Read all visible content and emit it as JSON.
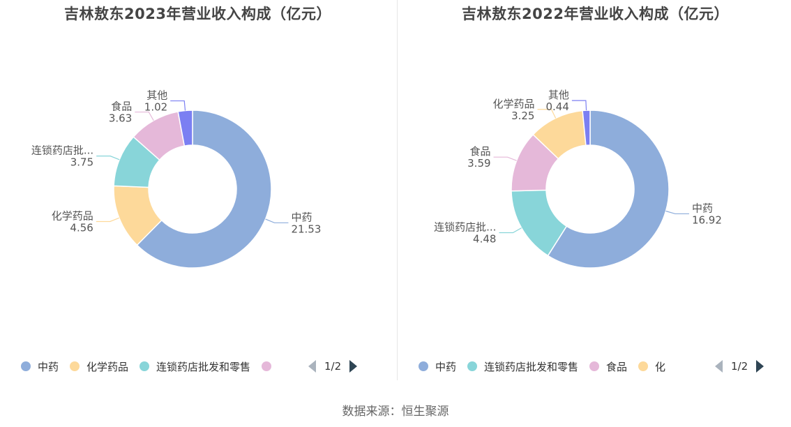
{
  "source": "数据来源：恒生聚源",
  "pager": "1/2",
  "colors": {
    "中药": "#8eaddb",
    "化学药品": "#fdd99a",
    "连锁药店批发和零售": "#88d5d9",
    "食品": "#e5b8d9",
    "其他": "#7b7ff2"
  },
  "chart_data": [
    {
      "type": "pie",
      "title": "吉林敖东2023年营业收入构成（亿元）",
      "slices": [
        {
          "name": "中药",
          "label": "中药",
          "value": 21.53
        },
        {
          "name": "化学药品",
          "label": "化学药品",
          "value": 4.56
        },
        {
          "name": "连锁药店批发和零售",
          "label": "连锁药店批...",
          "value": 3.75
        },
        {
          "name": "食品",
          "label": "食品",
          "value": 3.63
        },
        {
          "name": "其他",
          "label": "其他",
          "value": 1.02
        }
      ],
      "legend": [
        "中药",
        "化学药品",
        "连锁药店批发和零售",
        ""
      ],
      "legend_placement": "bottom"
    },
    {
      "type": "pie",
      "title": "吉林敖东2022年营业收入构成（亿元）",
      "slices": [
        {
          "name": "中药",
          "label": "中药",
          "value": 16.92
        },
        {
          "name": "连锁药店批发和零售",
          "label": "连锁药店批...",
          "value": 4.48
        },
        {
          "name": "食品",
          "label": "食品",
          "value": 3.59
        },
        {
          "name": "化学药品",
          "label": "化学药品",
          "value": 3.25
        },
        {
          "name": "其他",
          "label": "其他",
          "value": 0.44
        }
      ],
      "legend": [
        "中药",
        "连锁药店批发和零售",
        "食品",
        "化"
      ],
      "legend_placement": "bottom"
    }
  ]
}
